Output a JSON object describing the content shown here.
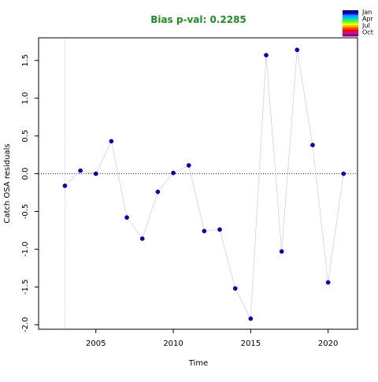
{
  "chart_data": {
    "type": "scatter",
    "title": "Bias p-val: 0.2285",
    "title_color": "#228B22",
    "xlabel": "Time",
    "ylabel": "Catch OSA residuals",
    "xlim": [
      2001.3,
      2021.9
    ],
    "ylim": [
      -2.06,
      1.8
    ],
    "x_ticks": [
      2005,
      2010,
      2015,
      2020
    ],
    "y_ticks": [
      -2.0,
      -1.5,
      -1.0,
      -0.5,
      0.0,
      0.5,
      1.0,
      1.5
    ],
    "y_tick_labels": [
      "-2.0",
      "-1.5",
      "-1.0",
      "-0.5",
      "0.0",
      "0.5",
      "1.0",
      "1.5"
    ],
    "zero_reference_line": 0,
    "vertical_reference_line_x": 2003,
    "series": [
      {
        "x": [
          2003,
          2004,
          2005,
          2006,
          2007,
          2008,
          2009,
          2010,
          2011,
          2012,
          2013,
          2014,
          2015,
          2016,
          2017,
          2018,
          2019,
          2020,
          2021
        ],
        "y": [
          -0.16,
          0.04,
          0.0,
          0.43,
          -0.58,
          -0.86,
          -0.24,
          0.01,
          0.11,
          -0.76,
          -0.74,
          -1.52,
          -1.92,
          1.57,
          -1.03,
          1.64,
          0.38,
          -1.44,
          0.0
        ]
      }
    ],
    "point_color": "#0000CD",
    "line_color": "#D3D3D3",
    "grid": false,
    "legend": {
      "placement": "top-right",
      "entries": [
        "Jan",
        "Apr",
        "Jul",
        "Oct"
      ],
      "gradient_colors": [
        "#00008B",
        "#0000FF",
        "#1E90FF",
        "#00BFFF",
        "#00FF7F",
        "#7FFF00",
        "#FFFF00",
        "#FFA500",
        "#FF4500",
        "#FF0000",
        "#C71585",
        "#8B008B"
      ]
    }
  }
}
